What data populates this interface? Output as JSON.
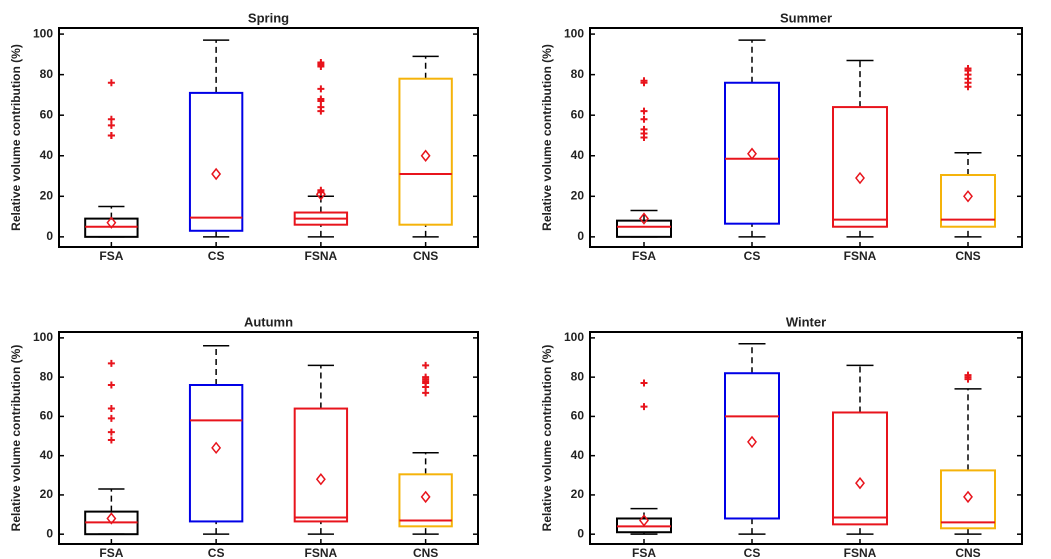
{
  "chart_data": [
    {
      "type": "box",
      "title": "Spring",
      "ylabel": "Relative volume contribution (%)",
      "categories": [
        "FSA",
        "CS",
        "FSNA",
        "CNS"
      ],
      "median_color": "#e8141c",
      "ylim": [
        -5,
        103
      ],
      "yticks": [
        0,
        20,
        40,
        60,
        80,
        100
      ],
      "boxes": [
        {
          "whislo": 0,
          "q1": 0,
          "med": 5,
          "q3": 9,
          "whishi": 15,
          "mean": 7,
          "fliers": [
            50,
            50,
            55,
            58,
            76
          ],
          "color": "#000000"
        },
        {
          "whislo": 0,
          "q1": 3,
          "med": 9.5,
          "q3": 71,
          "whishi": 97,
          "mean": 31,
          "fliers": [],
          "color": "#0000e6"
        },
        {
          "whislo": 0,
          "q1": 6,
          "med": 9,
          "q3": 12,
          "whishi": 20,
          "mean": 21,
          "fliers": [
            22,
            23,
            62,
            64,
            67,
            68,
            73,
            84,
            85,
            86
          ],
          "color": "#e8141c"
        },
        {
          "whislo": 0,
          "q1": 6,
          "med": 31,
          "q3": 78,
          "whishi": 89,
          "mean": 40,
          "fliers": [],
          "color": "#f5b30a"
        }
      ]
    },
    {
      "type": "box",
      "title": "Summer",
      "ylabel": "Relative volume contribution (%)",
      "categories": [
        "FSA",
        "CS",
        "FSNA",
        "CNS"
      ],
      "median_color": "#e8141c",
      "ylim": [
        -5,
        103
      ],
      "yticks": [
        0,
        20,
        40,
        60,
        80,
        100
      ],
      "boxes": [
        {
          "whislo": 0,
          "q1": 0,
          "med": 5,
          "q3": 8,
          "whishi": 13,
          "mean": 9,
          "fliers": [
            49,
            51,
            53,
            58,
            62,
            76,
            77
          ],
          "color": "#000000"
        },
        {
          "whislo": 0,
          "q1": 6.5,
          "med": 38.5,
          "q3": 76,
          "whishi": 97,
          "mean": 41,
          "fliers": [],
          "color": "#0000e6"
        },
        {
          "whislo": 0,
          "q1": 5,
          "med": 8.5,
          "q3": 64,
          "whishi": 87,
          "mean": 29,
          "fliers": [],
          "color": "#e8141c"
        },
        {
          "whislo": 0,
          "q1": 5,
          "med": 8.5,
          "q3": 30.5,
          "whishi": 41.5,
          "mean": 20,
          "fliers": [
            74,
            76,
            78,
            80,
            82,
            83
          ],
          "color": "#f5b30a"
        }
      ]
    },
    {
      "type": "box",
      "title": "Autumn",
      "ylabel": "Relative volume contribution (%)",
      "categories": [
        "FSA",
        "CS",
        "FSNA",
        "CNS"
      ],
      "median_color": "#e8141c",
      "ylim": [
        -5,
        103
      ],
      "yticks": [
        0,
        20,
        40,
        60,
        80,
        100
      ],
      "boxes": [
        {
          "whislo": 0,
          "q1": 0,
          "med": 6,
          "q3": 11.5,
          "whishi": 23,
          "mean": 8,
          "fliers": [
            48,
            52,
            59,
            64,
            76,
            87
          ],
          "color": "#000000"
        },
        {
          "whislo": 0,
          "q1": 6.5,
          "med": 58,
          "q3": 76,
          "whishi": 96,
          "mean": 44,
          "fliers": [],
          "color": "#0000e6"
        },
        {
          "whislo": 0,
          "q1": 6.5,
          "med": 8.5,
          "q3": 64,
          "whishi": 86,
          "mean": 28,
          "fliers": [],
          "color": "#e8141c"
        },
        {
          "whislo": 0,
          "q1": 4,
          "med": 7,
          "q3": 30.5,
          "whishi": 41.5,
          "mean": 19,
          "fliers": [
            72,
            75,
            77,
            78,
            79,
            80,
            86
          ],
          "color": "#f5b30a"
        }
      ]
    },
    {
      "type": "box",
      "title": "Winter",
      "ylabel": "Relative volume contribution (%)",
      "categories": [
        "FSA",
        "CS",
        "FSNA",
        "CNS"
      ],
      "median_color": "#e8141c",
      "ylim": [
        -5,
        103
      ],
      "yticks": [
        0,
        20,
        40,
        60,
        80,
        100
      ],
      "boxes": [
        {
          "whislo": 0,
          "q1": 1,
          "med": 4,
          "q3": 8,
          "whishi": 13,
          "mean": 7,
          "fliers": [
            65,
            77
          ],
          "color": "#000000"
        },
        {
          "whislo": 0,
          "q1": 8,
          "med": 60,
          "q3": 82,
          "whishi": 97,
          "mean": 47,
          "fliers": [],
          "color": "#0000e6"
        },
        {
          "whislo": 0,
          "q1": 5,
          "med": 8.5,
          "q3": 62,
          "whishi": 86,
          "mean": 26,
          "fliers": [],
          "color": "#e8141c"
        },
        {
          "whislo": 0,
          "q1": 3,
          "med": 6,
          "q3": 32.5,
          "whishi": 74,
          "mean": 19,
          "fliers": [
            79,
            80,
            81
          ],
          "color": "#f5b30a"
        }
      ]
    }
  ]
}
